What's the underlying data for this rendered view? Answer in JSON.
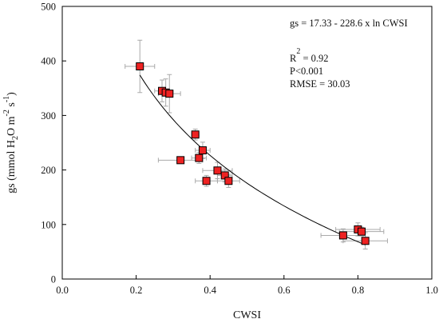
{
  "chart_data": {
    "type": "scatter",
    "xlabel": "CWSI",
    "ylabel": {
      "prefix": "gs (mmol H",
      "sub": "2",
      "mid": "O m",
      "sup1": "-2",
      "mid2": " s",
      "sup2": "-1",
      "suffix": ")"
    },
    "xlim": [
      0.0,
      1.0
    ],
    "ylim": [
      0,
      500
    ],
    "xticks": [
      0.0,
      0.2,
      0.4,
      0.6,
      0.8,
      1.0
    ],
    "xtick_labels": [
      "0.0",
      "0.2",
      "0.4",
      "0.6",
      "0.8",
      "1.0"
    ],
    "yticks": [
      0,
      100,
      200,
      300,
      400,
      500
    ],
    "ytick_labels": [
      "0",
      "100",
      "200",
      "300",
      "400",
      "500"
    ],
    "grid": false,
    "marker_color": "#ee2222",
    "errorbar_color": "#aaaaaa",
    "points": [
      {
        "x": 0.21,
        "y": 390,
        "xerr": 0.04,
        "yerr": 48
      },
      {
        "x": 0.27,
        "y": 345,
        "xerr": 0.02,
        "yerr": 20
      },
      {
        "x": 0.28,
        "y": 342,
        "xerr": 0.02,
        "yerr": 25
      },
      {
        "x": 0.29,
        "y": 340,
        "xerr": 0.03,
        "yerr": 35
      },
      {
        "x": 0.32,
        "y": 218,
        "xerr": 0.06,
        "yerr": 5
      },
      {
        "x": 0.36,
        "y": 265,
        "xerr": 0.01,
        "yerr": 10
      },
      {
        "x": 0.37,
        "y": 222,
        "xerr": 0.02,
        "yerr": 10
      },
      {
        "x": 0.38,
        "y": 236,
        "xerr": 0.02,
        "yerr": 15
      },
      {
        "x": 0.39,
        "y": 180,
        "xerr": 0.03,
        "yerr": 10
      },
      {
        "x": 0.42,
        "y": 199,
        "xerr": 0.04,
        "yerr": 15
      },
      {
        "x": 0.44,
        "y": 190,
        "xerr": 0.02,
        "yerr": 12
      },
      {
        "x": 0.45,
        "y": 180,
        "xerr": 0.03,
        "yerr": 12
      },
      {
        "x": 0.76,
        "y": 80,
        "xerr": 0.06,
        "yerr": 12
      },
      {
        "x": 0.8,
        "y": 91,
        "xerr": 0.06,
        "yerr": 12
      },
      {
        "x": 0.81,
        "y": 87,
        "xerr": 0.06,
        "yerr": 8
      },
      {
        "x": 0.82,
        "y": 70,
        "xerr": 0.06,
        "yerr": 15
      }
    ],
    "fit": {
      "equation": "gs = 17.33  - 228.6  x  ln CWSI",
      "intercept": 17.33,
      "slope": -228.6,
      "x_range": [
        0.21,
        0.82
      ]
    },
    "stats": {
      "r2_base": "R",
      "r2_sup": "2",
      "r2_value": " = 0.92",
      "p": "P<0.001",
      "rmse": "RMSE = 30.03"
    }
  }
}
